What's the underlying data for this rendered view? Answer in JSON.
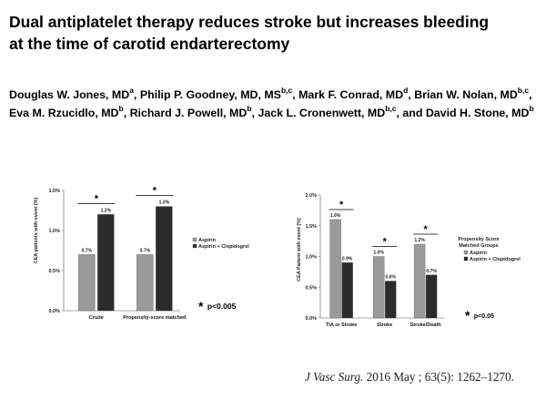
{
  "slide": {
    "title_line1": "Dual antiplatelet therapy reduces stroke but increases bleeding",
    "title_line2": "at the time of carotid endarterectomy",
    "authors": [
      {
        "name": "Douglas W. Jones, MD",
        "sup": "a",
        "sep": ", "
      },
      {
        "name": "Philip P. Goodney, MD, MS",
        "sup": "b,c",
        "sep": ", "
      },
      {
        "name": "Mark F. Conrad, MD",
        "sup": "d",
        "sep": ", "
      },
      {
        "name": "Brian W. Nolan, MD",
        "sup": "b,c",
        "sep": ", "
      },
      {
        "name": "Eva M. Rzucidlo, MD",
        "sup": "b",
        "sep": ", "
      },
      {
        "name": "Richard J. Powell, MD",
        "sup": "b",
        "sep": ", "
      },
      {
        "name": "Jack L. Cronenwett, MD",
        "sup": "b,c",
        "sep": ", and "
      },
      {
        "name": "David H. Stone, MD",
        "sup": "b",
        "sep": ""
      }
    ],
    "citation_journal": "J Vasc Surg.",
    "citation_rest": " 2016 May ; 63(5): 1262–1270."
  },
  "chart_data": [
    {
      "type": "bar",
      "ylabel": "CEA patients with event (%)",
      "ylim": [
        0,
        1.5
      ],
      "yticks": [
        "0.0%",
        "0.5%",
        "1.0%",
        "1.5%"
      ],
      "categories": [
        "Crude",
        "Propensity-score matched"
      ],
      "series": [
        {
          "name": "Aspirin",
          "values": [
            0.7,
            0.7
          ],
          "labels": [
            "0.7%",
            "0.7%"
          ],
          "color": "#9a9a9a"
        },
        {
          "name": "Aspirin + Clopidogrel",
          "values": [
            1.2,
            1.3
          ],
          "labels": [
            "1.2%",
            "1.3%"
          ],
          "color": "#2b2b2b"
        }
      ],
      "significance_marker": "*",
      "note_marker": "*",
      "note": "p<0.005",
      "legend_position": "right",
      "grid": false
    },
    {
      "type": "bar",
      "ylabel": "CEA Patient with event (%)",
      "ylim": [
        0,
        2.0
      ],
      "yticks": [
        "0.0%",
        "0.5%",
        "1.0%",
        "1.5%",
        "2.0%"
      ],
      "categories": [
        "TIA or Stroke",
        "Stroke",
        "Stroke/Death"
      ],
      "series": [
        {
          "name": "Aspirin",
          "values": [
            1.6,
            1.0,
            1.2
          ],
          "labels": [
            "1.6%",
            "1.0%",
            "1.2%"
          ],
          "color": "#9a9a9a"
        },
        {
          "name": "Aspirin + Clopidogrel",
          "values": [
            0.9,
            0.6,
            0.7
          ],
          "labels": [
            "0.9%",
            "0.6%",
            "0.7%"
          ],
          "color": "#2b2b2b"
        }
      ],
      "legend_title": [
        "Propensity Score",
        "Matched Groups"
      ],
      "significance_marker": "*",
      "note_marker": "*",
      "note": "p<0.05",
      "legend_position": "right",
      "grid": false
    }
  ]
}
